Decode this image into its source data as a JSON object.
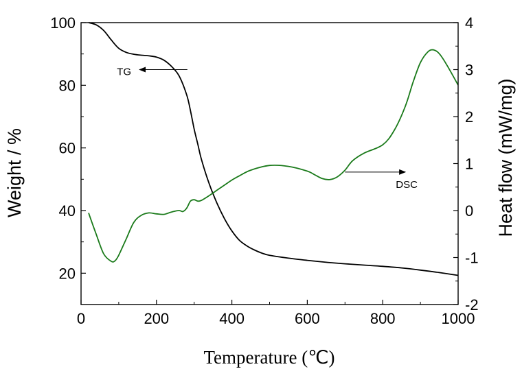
{
  "chart_data": {
    "type": "line",
    "xlabel": "Temperature (℃)",
    "ylabel_left": "Weight / %",
    "ylabel_right": "Heat flow (mW/mg)",
    "xlim": [
      0,
      1000
    ],
    "ylim_left": [
      10,
      100
    ],
    "ylim_right": [
      -2,
      4
    ],
    "x_ticks": [
      0,
      200,
      400,
      600,
      800,
      1000
    ],
    "y_left_ticks": [
      20,
      40,
      60,
      80,
      100
    ],
    "y_right_ticks": [
      -2,
      -1,
      0,
      1,
      2,
      3,
      4
    ],
    "colors": {
      "TG": "#000000",
      "DSC": "#1a7a1a"
    },
    "annotations": [
      {
        "text": "TG",
        "arrow_from": [
          282,
          85
        ],
        "arrow_to": [
          155,
          85
        ],
        "axis": "left"
      },
      {
        "text": "DSC",
        "arrow_from": [
          700,
          0.82
        ],
        "arrow_to": [
          860,
          0.82
        ],
        "axis": "right"
      }
    ],
    "series": [
      {
        "id": "TG",
        "axis": "left",
        "x": [
          20,
          40,
          60,
          80,
          100,
          120,
          140,
          160,
          180,
          200,
          220,
          240,
          260,
          280,
          290,
          300,
          310,
          320,
          340,
          360,
          380,
          400,
          420,
          440,
          460,
          480,
          500,
          550,
          600,
          650,
          700,
          750,
          800,
          850,
          900,
          950,
          1000
        ],
        "y": [
          100,
          99.3,
          97.5,
          94.5,
          91.8,
          90.5,
          89.9,
          89.6,
          89.4,
          89.0,
          88.0,
          86.0,
          83.0,
          77.0,
          72.0,
          66.0,
          61.0,
          56.0,
          48.5,
          42.5,
          37.5,
          33.5,
          30.5,
          28.7,
          27.4,
          26.4,
          25.7,
          24.8,
          24.1,
          23.5,
          23.0,
          22.6,
          22.2,
          21.7,
          21.0,
          20.2,
          19.3
        ]
      },
      {
        "id": "DSC",
        "axis": "right",
        "x": [
          20,
          40,
          60,
          80,
          90,
          100,
          120,
          140,
          160,
          180,
          200,
          220,
          240,
          260,
          270,
          280,
          290,
          300,
          310,
          320,
          340,
          360,
          380,
          400,
          420,
          450,
          500,
          550,
          600,
          620,
          640,
          660,
          680,
          700,
          720,
          750,
          800,
          830,
          860,
          880,
          900,
          920,
          935,
          950,
          970,
          1000
        ],
        "y": [
          -0.05,
          -0.5,
          -0.92,
          -1.08,
          -1.07,
          -0.95,
          -0.6,
          -0.25,
          -0.1,
          -0.05,
          -0.07,
          -0.08,
          -0.03,
          0.0,
          -0.02,
          0.05,
          0.2,
          0.23,
          0.2,
          0.22,
          0.32,
          0.43,
          0.54,
          0.65,
          0.74,
          0.86,
          0.96,
          0.94,
          0.84,
          0.76,
          0.68,
          0.66,
          0.72,
          0.86,
          1.06,
          1.22,
          1.4,
          1.7,
          2.22,
          2.72,
          3.15,
          3.38,
          3.42,
          3.34,
          3.1,
          2.67
        ]
      }
    ]
  }
}
